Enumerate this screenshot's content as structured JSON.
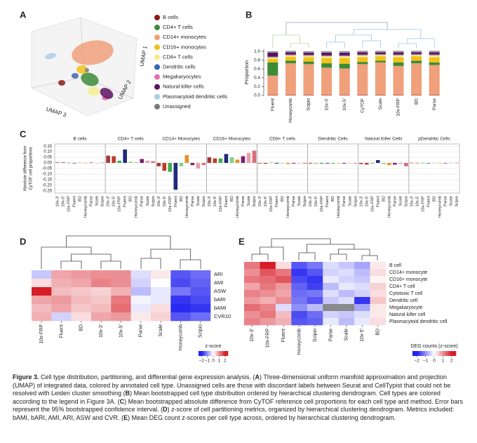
{
  "chart_data": [
    {
      "type": "scatter3d",
      "panel_label": "A",
      "x_label": "UMAP 1",
      "y_label": "UMAP 2",
      "z_label": "UMAP 3",
      "series": [
        {
          "name": "B cells",
          "color": "#8b1a1a"
        },
        {
          "name": "CD4+ T cells",
          "color": "#3d8b37"
        },
        {
          "name": "CD14+ monocytes",
          "color": "#f0a07a"
        },
        {
          "name": "CD16+ monocytes",
          "color": "#f2c21b"
        },
        {
          "name": "CD8+ T cells",
          "color": "#f5ec8a"
        },
        {
          "name": "Dendritic cells",
          "color": "#3b64b0"
        },
        {
          "name": "Megakaryocytes",
          "color": "#e070b0"
        },
        {
          "name": "Natural killer cells",
          "color": "#5c1060"
        },
        {
          "name": "Plasmacytoid dendritic cells",
          "color": "#a9cde8"
        },
        {
          "name": "Unassigned",
          "color": "#7a7a7a"
        }
      ]
    },
    {
      "type": "stacked_bar",
      "panel_label": "B",
      "y_label": "Proportion",
      "categories": [
        "Fluent",
        "Honeycomb",
        "Scipio",
        "10x-3'",
        "10x-5'",
        "CyTOF",
        "Scale",
        "10x-FRP",
        "BD",
        "Parse"
      ],
      "ylim": [
        0,
        1.05
      ],
      "yticks": [
        {
          "value": 0,
          "label": "0.0"
        },
        0.2,
        0.4,
        0.6,
        0.8,
        {
          "value": 1,
          "label": "1.0"
        }
      ],
      "series": [
        {
          "color": "#8b1a1a",
          "values": [
            0.01,
            0.01,
            0.01,
            0.01,
            0.01,
            0.01,
            0.01,
            0.01,
            0.01,
            0.01
          ]
        },
        {
          "color": "#f0a07a",
          "values": [
            0.44,
            0.72,
            0.7,
            0.62,
            0.6,
            0.7,
            0.74,
            0.66,
            0.72,
            0.68
          ]
        },
        {
          "color": "#3d8b37",
          "values": [
            0.3,
            0.06,
            0.06,
            0.1,
            0.11,
            0.05,
            0.04,
            0.08,
            0.06,
            0.06
          ]
        },
        {
          "color": "#f2c21b",
          "values": [
            0.08,
            0.09,
            0.1,
            0.12,
            0.13,
            0.11,
            0.1,
            0.12,
            0.1,
            0.12
          ]
        },
        {
          "color": "#f5ec8a",
          "values": [
            0.03,
            0.03,
            0.03,
            0.04,
            0.04,
            0.04,
            0.03,
            0.04,
            0.03,
            0.04
          ]
        },
        {
          "color": "#3b64b0",
          "values": [
            0.01,
            0.01,
            0.01,
            0.01,
            0.01,
            0.01,
            0.01,
            0.01,
            0.01,
            0.01
          ]
        },
        {
          "color": "#e070b0",
          "values": [
            0.01,
            0.01,
            0.01,
            0.01,
            0.01,
            0.01,
            0.01,
            0.01,
            0.01,
            0.01
          ]
        },
        {
          "color": "#5c1060",
          "values": [
            0.09,
            0.05,
            0.05,
            0.06,
            0.06,
            0.05,
            0.04,
            0.05,
            0.04,
            0.05
          ]
        },
        {
          "color": "#a9cde8",
          "values": [
            0.01,
            0.01,
            0.01,
            0.01,
            0.01,
            0.01,
            0.01,
            0.01,
            0.01,
            0.01
          ]
        },
        {
          "color": "#7a7a7a",
          "values": [
            0.02,
            0.02,
            0.02,
            0.02,
            0.02,
            0.02,
            0.02,
            0.02,
            0.02,
            0.02
          ]
        }
      ]
    },
    {
      "type": "faceted_bar",
      "panel_label": "C",
      "y_label": [
        "Absolute difference from",
        "CyTOF cell proportions"
      ],
      "ylim": [
        -0.27,
        0.17
      ],
      "yticks": [
        0.15,
        {
          "value": 0.1,
          "label": "0.10"
        },
        0.05,
        {
          "value": 0,
          "label": "0.00"
        },
        -0.05,
        {
          "value": -0.1,
          "label": "-0.10"
        },
        -0.15,
        {
          "value": -0.2,
          "label": "-0.20"
        },
        -0.25
      ],
      "methods": [
        "10x-3'",
        "10x-5'",
        "10x-FRP",
        "Fluent",
        "BD",
        "Honeycomb",
        "Parse",
        "Scale",
        "Scipio"
      ],
      "colors": [
        "#9e3b3b",
        "#c0392b",
        "#3fae49",
        "#1f2a7a",
        "#7fd17f",
        "#e6912c",
        "#7b1f6e",
        "#e8a0a8",
        "#d86b7a"
      ],
      "facets": [
        {
          "title": "B cells",
          "values": [
            0.005,
            0.005,
            0.002,
            -0.003,
            0.004,
            0.002,
            0.003,
            -0.002,
            0.003
          ]
        },
        {
          "title": "CD4+ T cells",
          "values": [
            0.065,
            0.06,
            0.02,
            0.12,
            0.01,
            0.005,
            0.035,
            0.02,
            0.015
          ]
        },
        {
          "title": "CD14+ Monocytes",
          "values": [
            -0.03,
            -0.07,
            -0.08,
            -0.24,
            -0.03,
            0.07,
            -0.02,
            -0.05,
            -0.02
          ]
        },
        {
          "title": "CD16+ Monocytes",
          "values": [
            0.05,
            0.04,
            0.04,
            0.08,
            0.05,
            0.03,
            0.06,
            0.09,
            0.11
          ]
        },
        {
          "title": "CD8+ T cells",
          "values": [
            -0.005,
            -0.008,
            0.003,
            -0.006,
            -0.005,
            -0.01,
            -0.006,
            -0.004,
            -0.007
          ]
        },
        {
          "title": "Dendritic Cells",
          "values": [
            -0.006,
            -0.003,
            -0.008,
            -0.005,
            -0.01,
            -0.004,
            -0.006,
            -0.003,
            -0.005
          ]
        },
        {
          "title": "Natural Killer Cells",
          "values": [
            -0.01,
            -0.015,
            -0.005,
            0.025,
            -0.01,
            -0.02,
            -0.015,
            -0.01,
            -0.03
          ]
        },
        {
          "title": "pDendritic Cells",
          "values": [
            0.002,
            -0.002,
            0.001,
            -0.003,
            0.002,
            0.001,
            -0.002,
            0.001,
            0.002
          ]
        }
      ]
    },
    {
      "type": "heatmap",
      "panel_label": "D",
      "columns": [
        "10x-FRP",
        "Fluent",
        "BD",
        "10x-3'",
        "10x-5'",
        "Parse",
        "Scale",
        "Honeycomb",
        "Scipio"
      ],
      "rows": [
        "ARI",
        "AMI",
        "ASW",
        "bARI",
        "bAMI",
        "CVR10"
      ],
      "values": [
        [
          -0.5,
          0.8,
          0.9,
          1.0,
          1.0,
          -0.3,
          0.2,
          -1.5,
          -1.3
        ],
        [
          0.3,
          0.7,
          0.8,
          1.1,
          1.0,
          -0.4,
          0,
          -1.6,
          -1.4
        ],
        [
          2.2,
          0.6,
          0.5,
          0.4,
          0.7,
          -0.6,
          -0.2,
          -1.2,
          -1.5
        ],
        [
          0.8,
          0.9,
          0.6,
          0.5,
          1.2,
          -0.1,
          -0.2,
          -1.8,
          -1.6
        ],
        [
          0.6,
          0.8,
          0.5,
          0.6,
          1.3,
          -0.2,
          0.3,
          -1.9,
          -1.8
        ],
        [
          0.7,
          -0.4,
          0.3,
          0.8,
          0.9,
          0.2,
          0.4,
          -1.5,
          -1.3
        ]
      ],
      "colorbar": {
        "title": "z-score",
        "lim": [
          -2.5,
          2.5
        ],
        "ticks": [
          {
            "value": -2,
            "label": "−2"
          },
          {
            "value": -1,
            "label": "−1"
          },
          0,
          1,
          2
        ]
      }
    },
    {
      "type": "heatmap",
      "panel_label": "E",
      "columns": [
        "10x-3'",
        "10x-FRP",
        "Fluent",
        "Honeycomb",
        "Scipio",
        "Parse",
        "Scale",
        "10x-5'",
        "BD"
      ],
      "rows": [
        "B cell",
        "CD14+ monocyte",
        "CD16+ monocyte",
        "CD4+ T cell",
        "Cytotoxic T cell",
        "Dendritic cell",
        "Megakaryocyte",
        "Natural killer cell",
        "Plasmacytoid dendritic cell"
      ],
      "values": [
        [
          1.2,
          2.5,
          0.3,
          -1.5,
          -1.2,
          -0.3,
          -0.5,
          -0.8,
          0.2
        ],
        [
          1.0,
          1.5,
          1.2,
          -1.8,
          -1.5,
          -0.4,
          -0.3,
          -0.6,
          0.3
        ],
        [
          1.2,
          1.3,
          1.5,
          -1.6,
          -1.8,
          -0.2,
          -0.4,
          -0.5,
          0.1
        ],
        [
          0.8,
          1.2,
          0.9,
          -1.4,
          -1.7,
          -0.6,
          -0.2,
          -0.3,
          0.4
        ],
        [
          1.1,
          1.0,
          0.8,
          -1.3,
          -1.2,
          -0.3,
          -0.6,
          -0.4,
          0.3
        ],
        [
          0.9,
          0.7,
          1.0,
          -1.2,
          -1.5,
          -0.5,
          -0.3,
          -1.8,
          0.5
        ],
        [
          1.3,
          1.1,
          -0.3,
          -1.0,
          -0.6,
          null,
          null,
          -0.8,
          0.2
        ],
        [
          1.0,
          1.2,
          0.6,
          -1.6,
          -1.3,
          -0.4,
          -0.5,
          -0.3,
          0.2
        ],
        [
          1.1,
          0.9,
          0.7,
          -1.5,
          -1.4,
          -0.2,
          -0.6,
          -0.2,
          0.3
        ]
      ],
      "colorbar": {
        "title": "DEG counts (z-score)",
        "lim": [
          -2.5,
          2.5
        ],
        "ticks": [
          {
            "value": -2,
            "label": "−2"
          },
          {
            "value": -1,
            "label": "−1"
          },
          0,
          1,
          2
        ]
      }
    }
  ],
  "caption": {
    "label": "Figure 3.",
    "parts": [
      {
        "text": " Cell type distribution, partitioning, and differential gene expression analysis. ("
      },
      {
        "text": "A",
        "bold": true
      },
      {
        "text": ") Three-dimensional uniform manifold approximation and projection (UMAP) of integrated data, colored by annotated cell type. Unassigned cells are those with discordant labels between Seurat and CellTypist that could not be resolved with Leiden cluster smoothing ("
      },
      {
        "text": "B",
        "bold": true
      },
      {
        "text": ") Mean bootstrapped cell type distribution ordered by hierarchical clustering dendrogram. Cell types are colored according to the legend in Figure 3A. ("
      },
      {
        "text": "C",
        "bold": true
      },
      {
        "text": ") Mean bootstrapped absolute difference from CyTOF reference cell proportions for each cell type and method. Error bars represent the 95% bootstrapped confidence interval. ("
      },
      {
        "text": "D",
        "bold": true
      },
      {
        "text": ") z-score of cell partitioning metrics, organized by hierarchical clustering dendrogram. Metrics included: bAMI, bARI, AMI, ARI, ASW and CVR. ("
      },
      {
        "text": "E",
        "bold": true
      },
      {
        "text": ") Mean DEG count z-scores per cell type across, ordered by hierarchical clustering dendrogram."
      }
    ]
  }
}
